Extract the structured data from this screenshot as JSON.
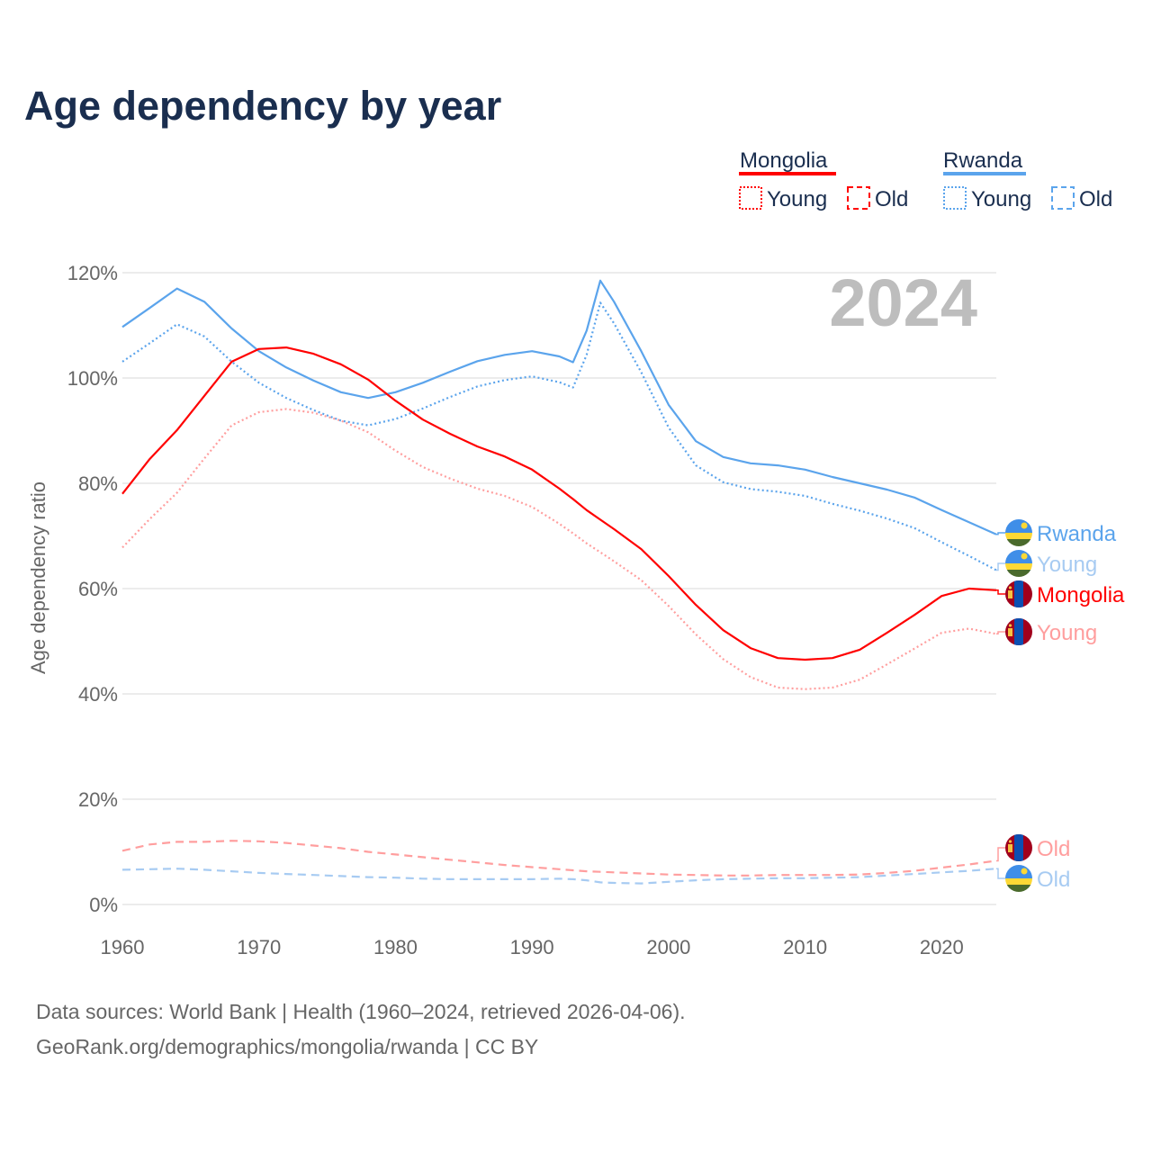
{
  "chart_data": {
    "type": "line",
    "title": "Age dependency by year",
    "ylabel": "Age dependency ratio",
    "xlabel": "",
    "xlim": [
      1960,
      2024
    ],
    "ylim": [
      0,
      120
    ],
    "x_ticks": [
      "1960",
      "1970",
      "1980",
      "1990",
      "2000",
      "2010",
      "2020"
    ],
    "y_ticks": [
      "0%",
      "20%",
      "40%",
      "60%",
      "80%",
      "100%",
      "120%"
    ],
    "grid": true,
    "current_year_label": "2024",
    "legend": {
      "placement": "top-right",
      "groups": [
        {
          "name": "Mongolia",
          "color": "#ff0000",
          "items": [
            "Young",
            "Old"
          ]
        },
        {
          "name": "Rwanda",
          "color": "#5ba4ec",
          "items": [
            "Young",
            "Old"
          ]
        }
      ]
    },
    "x": [
      1960,
      1962,
      1964,
      1966,
      1968,
      1970,
      1972,
      1974,
      1976,
      1978,
      1980,
      1982,
      1984,
      1986,
      1988,
      1990,
      1992,
      1993,
      1994,
      1995,
      1996,
      1998,
      2000,
      2002,
      2004,
      2006,
      2008,
      2010,
      2012,
      2014,
      2016,
      2018,
      2020,
      2022,
      2024
    ],
    "series": [
      {
        "name": "Rwanda",
        "end_label": "Rwanda",
        "country": "rwanda",
        "style": "solid",
        "color": "#5ba4ec",
        "values": [
          109.7,
          113.3,
          117,
          114.5,
          109.4,
          105.1,
          102,
          99.5,
          97.3,
          96.2,
          97.3,
          99.1,
          101.2,
          103.2,
          104.4,
          105.1,
          104.1,
          103,
          109,
          118.5,
          114.5,
          105.1,
          94.9,
          88,
          85,
          83.8,
          83.4,
          82.6,
          81.2,
          80,
          78.8,
          77.3,
          74.9,
          72.6,
          70.3
        ]
      },
      {
        "name": "Rwanda Young",
        "end_label": "Young",
        "country": "rwanda",
        "style": "dotted",
        "color": "#a7cbf2",
        "line_color": "#5ba4ec",
        "values": [
          103.1,
          106.6,
          110.2,
          107.9,
          103.1,
          99.1,
          96.2,
          93.9,
          91.9,
          91.0,
          92.2,
          94.2,
          96.4,
          98.4,
          99.6,
          100.3,
          99.2,
          98.2,
          104.4,
          114.3,
          110.4,
          101.1,
          90.6,
          83.4,
          80.2,
          78.9,
          78.4,
          77.6,
          76.1,
          74.8,
          73.3,
          71.5,
          68.8,
          66.2,
          63.5
        ]
      },
      {
        "name": "Mongolia",
        "end_label": "Mongolia",
        "country": "mongolia",
        "style": "solid",
        "color": "#ff0000",
        "values": [
          78,
          84.6,
          90.1,
          96.6,
          103.1,
          105.5,
          105.8,
          104.6,
          102.6,
          99.7,
          95.7,
          92.1,
          89.4,
          87,
          85.1,
          82.6,
          79,
          77,
          74.9,
          73.1,
          71.3,
          67.5,
          62.4,
          56.9,
          52.1,
          48.7,
          46.8,
          46.5,
          46.8,
          48.4,
          51.6,
          55,
          58.6,
          60,
          59.7
        ]
      },
      {
        "name": "Mongolia Young",
        "end_label": "Young",
        "country": "mongolia",
        "style": "dotted",
        "color": "#ff9e9e",
        "values": [
          67.8,
          73.2,
          78.2,
          84.7,
          91.0,
          93.5,
          94.1,
          93.4,
          91.9,
          89.7,
          86.2,
          83.1,
          80.9,
          79.0,
          77.6,
          75.5,
          72.3,
          70.5,
          68.6,
          66.9,
          65.2,
          61.6,
          56.7,
          51.3,
          46.6,
          43.2,
          41.2,
          40.9,
          41.2,
          42.7,
          45.6,
          48.6,
          51.6,
          52.4,
          51.4
        ]
      },
      {
        "name": "Mongolia Old",
        "end_label": "Old",
        "country": "mongolia",
        "style": "dashed",
        "color": "#ff9e9e",
        "values": [
          10.2,
          11.4,
          11.9,
          11.9,
          12.1,
          12.0,
          11.7,
          11.2,
          10.7,
          10.0,
          9.5,
          9.0,
          8.5,
          8.0,
          7.5,
          7.1,
          6.7,
          6.5,
          6.3,
          6.2,
          6.1,
          5.9,
          5.7,
          5.6,
          5.5,
          5.5,
          5.6,
          5.6,
          5.6,
          5.7,
          6.0,
          6.4,
          7.0,
          7.6,
          8.3
        ]
      },
      {
        "name": "Rwanda Old",
        "end_label": "Old",
        "country": "rwanda",
        "style": "dashed",
        "color": "#a7cbf2",
        "values": [
          6.6,
          6.7,
          6.8,
          6.6,
          6.3,
          6.0,
          5.8,
          5.6,
          5.4,
          5.2,
          5.1,
          4.9,
          4.8,
          4.8,
          4.8,
          4.8,
          4.9,
          4.8,
          4.6,
          4.2,
          4.1,
          4.0,
          4.3,
          4.6,
          4.8,
          4.9,
          5.0,
          5.0,
          5.1,
          5.2,
          5.5,
          5.8,
          6.1,
          6.4,
          6.8
        ]
      }
    ]
  },
  "footer": {
    "source": "Data sources: World Bank | Health (1960–2024, retrieved 2026-04-06).",
    "credit": "GeoRank.org/demographics/mongolia/rwanda | CC BY"
  }
}
